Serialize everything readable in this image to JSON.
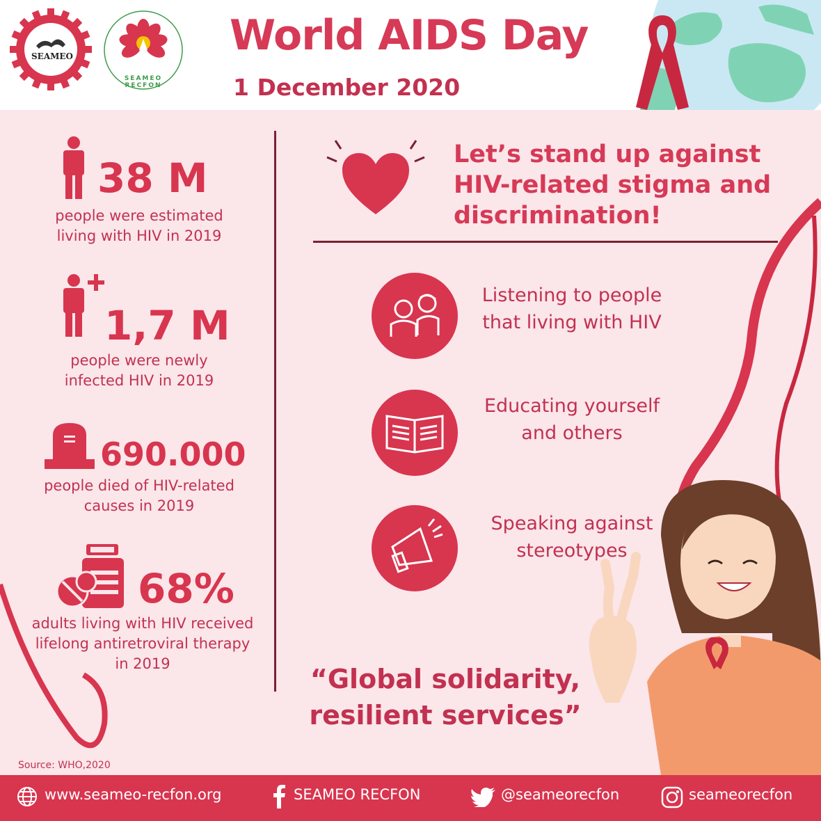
{
  "header": {
    "title": "World AIDS Day",
    "date": "1 December 2020",
    "logo1_text": "SEAMEO",
    "logo2_text": "SEAMEO RECFON"
  },
  "stats": [
    {
      "value": "38 M",
      "desc_line1": "people were estimated",
      "desc_line2": "living with HIV in 2019",
      "icon": "person-icon"
    },
    {
      "value": "1,7 M",
      "desc_line1": "people were newly",
      "desc_line2": "infected HIV in 2019",
      "icon": "person-plus-icon"
    },
    {
      "value": "690.000",
      "desc_line1": "people died of HIV-related",
      "desc_line2": "causes in 2019",
      "icon": "tombstone-icon"
    },
    {
      "value": "68%",
      "desc_line1": "adults living with HIV received",
      "desc_line2": "lifelong antiretroviral therapy",
      "desc_line3": "in 2019",
      "icon": "medicine-icon"
    }
  ],
  "tagline": {
    "line1": "Let’s stand up against",
    "line2": "HIV-related stigma and",
    "line3": "discrimination!"
  },
  "actions": [
    {
      "line1": "Listening to people",
      "line2": "that living with HIV",
      "icon": "people-talking-icon"
    },
    {
      "line1": "Educating yourself",
      "line2": "and others",
      "icon": "open-book-icon"
    },
    {
      "line1": "Speaking against",
      "line2": "stereotypes",
      "icon": "megaphone-icon"
    }
  ],
  "slogan": {
    "line1": "“Global solidarity,",
    "line2": "resilient services”"
  },
  "source": "Source: WHO,2020",
  "footer": {
    "website": "www.seameo-recfon.org",
    "facebook": "SEAMEO RECFON",
    "twitter": "@seameorecfon",
    "instagram": "seameorecfon"
  },
  "colors": {
    "primary": "#d8354f",
    "dark": "#7a2134",
    "background": "#fbe6ea",
    "globe_sea": "#c9e8f4",
    "globe_land": "#7fd3b4",
    "shirt": "#f39a6d"
  }
}
